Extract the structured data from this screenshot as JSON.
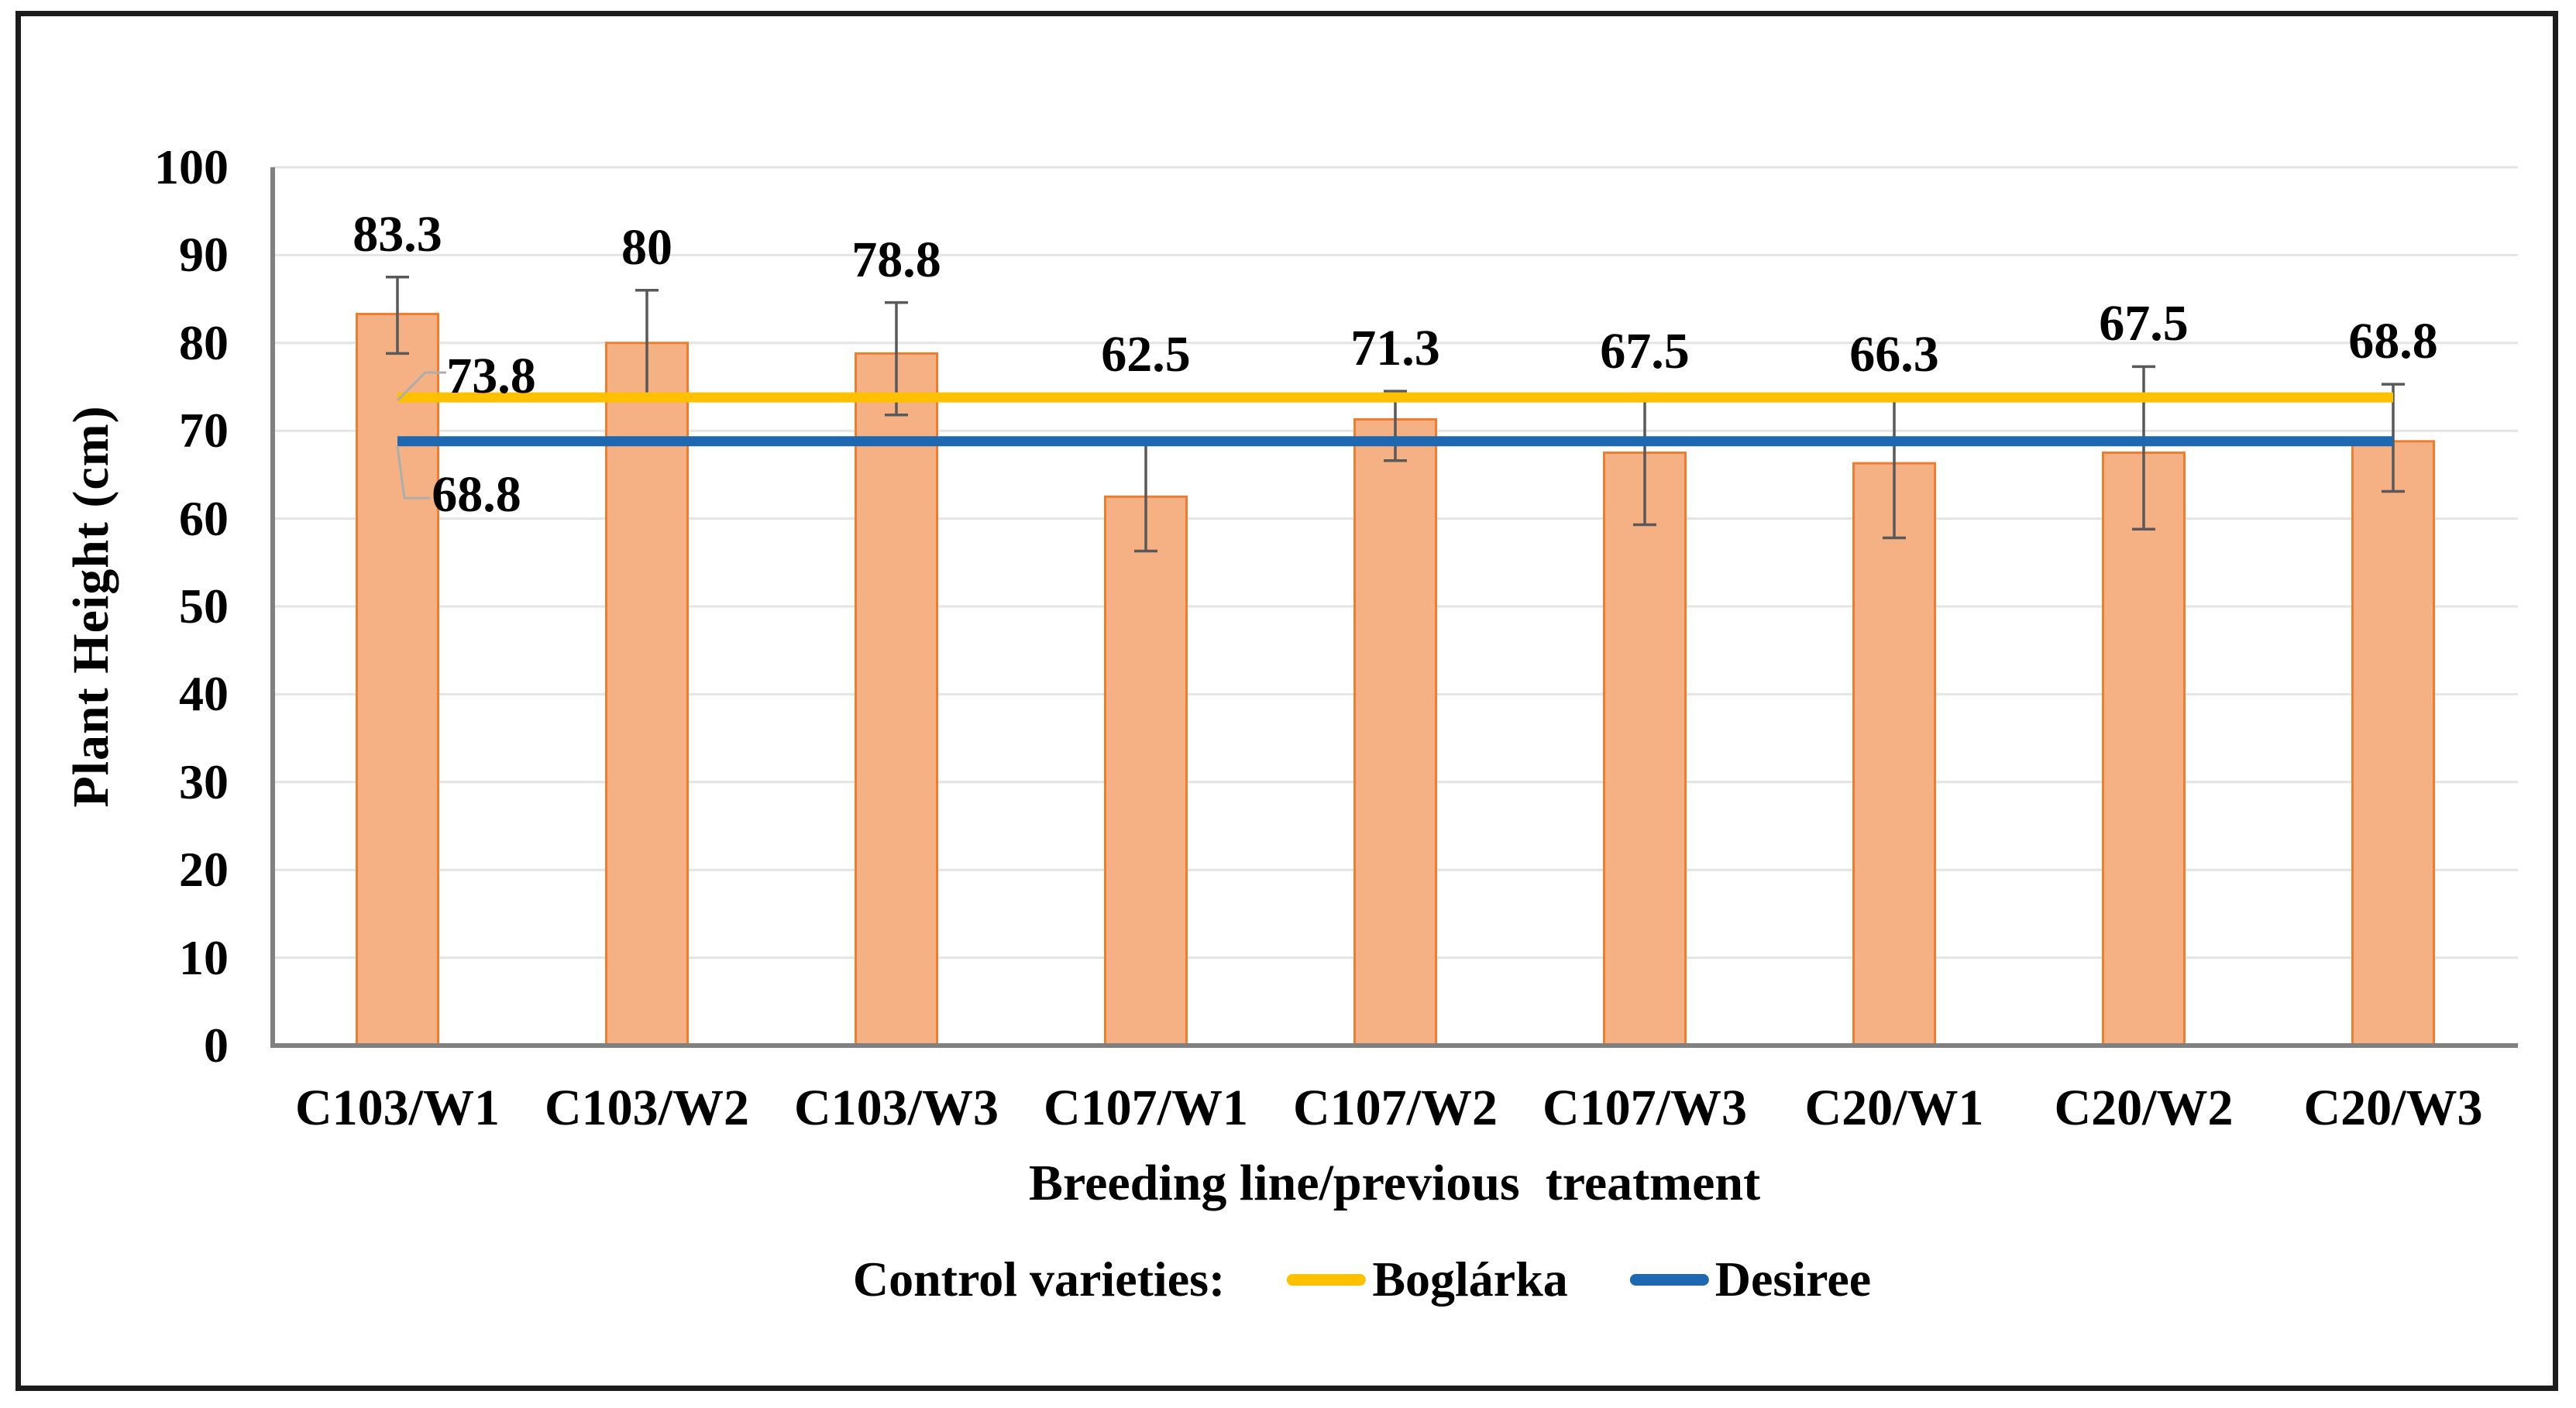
{
  "chart_data": {
    "type": "bar",
    "title": "",
    "categories": [
      "C103/W1",
      "C103/W2",
      "C103/W3",
      "C107/W1",
      "C107/W2",
      "C107/W3",
      "C20/W1",
      "C20/W2",
      "C20/W3"
    ],
    "series": [
      {
        "name": "Plant height",
        "values": [
          83.3,
          80,
          78.8,
          62.5,
          71.3,
          67.5,
          66.3,
          67.5,
          68.8
        ],
        "data_labels": [
          "83.3",
          "80",
          "78.8",
          "62.5",
          "71.3",
          "67.5",
          "66.3",
          "67.5",
          "68.8"
        ],
        "error_upper": [
          87.5,
          86,
          84.6,
          68.8,
          74.5,
          74.2,
          73.4,
          77.3,
          75.3
        ],
        "error_lower": [
          78.8,
          73.6,
          71.8,
          56.3,
          66.6,
          59.3,
          57.8,
          58.8,
          63.1
        ]
      }
    ],
    "xlabel": "Breeding line/previous  treatment",
    "ylabel": "Plant Height (cm)",
    "ylim": [
      0,
      100
    ],
    "ytick_step": 10,
    "grid": true,
    "ref_lines": [
      {
        "name": "Boglárka",
        "value": 73.8,
        "label": "73.8",
        "color": "#FFC000"
      },
      {
        "name": "Desiree",
        "value": 68.8,
        "label": "68.8",
        "color": "#1E68B2"
      }
    ],
    "legend": {
      "prefix": "Control varieties:",
      "position": "bottom"
    },
    "colors": {
      "bar_fill": "#F5B183",
      "bar_border": "#ED7D31",
      "boglarka_line": "#FFC000",
      "desiree_line": "#1E68B2"
    }
  }
}
